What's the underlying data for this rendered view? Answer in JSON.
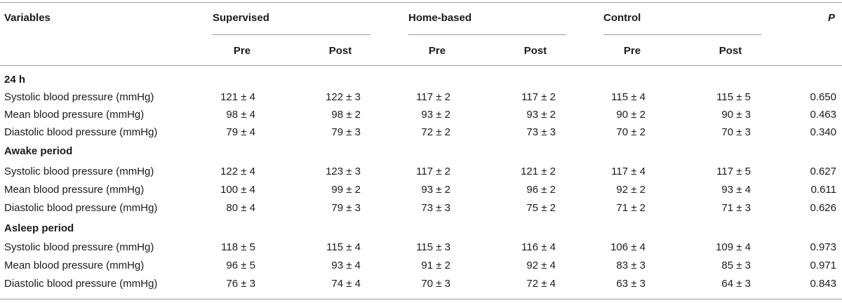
{
  "header": {
    "variables": "Variables",
    "groups": [
      "Supervised",
      "Home-based",
      "Control"
    ],
    "p": "P",
    "sub": [
      "Pre",
      "Post",
      "Pre",
      "Post",
      "Pre",
      "Post"
    ]
  },
  "sections": [
    {
      "title": "24 h",
      "rows": [
        {
          "label": "Systolic blood pressure (mmHg)",
          "values": [
            "121 ± 4",
            "122 ± 3",
            "117 ± 2",
            "117 ± 2",
            "115 ± 4",
            "115 ± 5"
          ],
          "p": "0.650"
        },
        {
          "label": "Mean blood pressure (mmHg)",
          "values": [
            "98 ± 4",
            "98 ± 2",
            "93 ± 2",
            "93 ± 2",
            "90 ± 2",
            "90 ± 3"
          ],
          "p": "0.463"
        },
        {
          "label": "Diastolic blood pressure (mmHg)",
          "values": [
            "79 ± 4",
            "79 ± 3",
            "72 ± 2",
            "73 ± 3",
            "70 ± 2",
            "70 ± 3"
          ],
          "p": "0.340"
        }
      ]
    },
    {
      "title": "Awake period",
      "rows": [
        {
          "label": "Systolic blood pressure (mmHg)",
          "values": [
            "122 ± 4",
            "123 ± 3",
            "117 ± 2",
            "121 ± 2",
            "117 ± 4",
            "117 ± 5"
          ],
          "p": "0.627"
        },
        {
          "label": "Mean blood pressure (mmHg)",
          "values": [
            "100 ± 4",
            "99 ± 2",
            "93 ± 2",
            "96 ± 2",
            "92 ± 2",
            "93 ± 4"
          ],
          "p": "0.611"
        },
        {
          "label": "Diastolic blood pressure (mmHg)",
          "values": [
            "80 ± 4",
            "79 ± 3",
            "73 ± 3",
            "75 ± 2",
            "71 ± 2",
            "71 ± 3"
          ],
          "p": "0.626"
        }
      ]
    },
    {
      "title": "Asleep period",
      "rows": [
        {
          "label": "Systolic blood pressure (mmHg)",
          "values": [
            "118 ± 5",
            "115 ± 4",
            "115 ± 3",
            "116 ± 4",
            "106 ± 4",
            "109 ± 4"
          ],
          "p": "0.973"
        },
        {
          "label": "Mean blood pressure (mmHg)",
          "values": [
            "96 ± 5",
            "93 ± 4",
            "91 ± 2",
            "92 ± 4",
            "83 ± 3",
            "85 ± 3"
          ],
          "p": "0.971"
        },
        {
          "label": "Diastolic blood pressure (mmHg)",
          "values": [
            "76 ± 3",
            "74 ± 4",
            "70 ± 3",
            "72 ± 4",
            "63 ± 3",
            "64 ± 3"
          ],
          "p": "0.843"
        }
      ]
    }
  ]
}
